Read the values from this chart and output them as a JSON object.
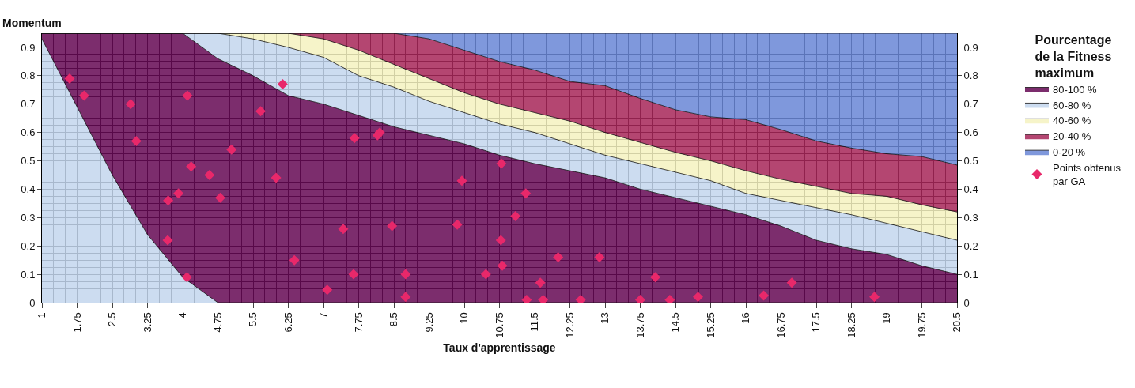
{
  "chart_data": {
    "type": "area",
    "ylabel": "Momentum",
    "xlabel": "Taux d'apprentissage",
    "legend_title": "Pourcentage de la Fitness maximum",
    "stacked": true,
    "grid": true,
    "legend": "right",
    "x": [
      1,
      1.75,
      2.5,
      3.25,
      4,
      4.75,
      5.5,
      6.25,
      7,
      7.75,
      8.5,
      9.25,
      10,
      10.75,
      11.5,
      12.25,
      13,
      13.75,
      14.5,
      15.25,
      16,
      16.75,
      17.5,
      18.25,
      19,
      19.75,
      20.5
    ],
    "xlim": [
      1,
      20.5
    ],
    "xticks": [
      1,
      1.75,
      2.5,
      3.25,
      4,
      4.75,
      5.5,
      6.25,
      7,
      7.75,
      8.5,
      9.25,
      10,
      10.75,
      11.5,
      12.25,
      13,
      13.75,
      14.5,
      15.25,
      16,
      16.75,
      17.5,
      18.25,
      19,
      19.75,
      20.5
    ],
    "ylim": [
      0,
      0.95
    ],
    "yticks": [
      0,
      0.1,
      0.2,
      0.3,
      0.4,
      0.5,
      0.6,
      0.7,
      0.8,
      0.9
    ],
    "y2lim": [
      0,
      0.95
    ],
    "y2ticks": [
      0,
      0.1,
      0.2,
      0.3,
      0.4,
      0.5,
      0.6,
      0.7,
      0.8,
      0.9
    ],
    "series": [
      {
        "color": "#c4d6ee",
        "values": [
          0.93,
          0.69,
          0.45,
          0.24,
          0.09,
          0,
          0,
          0,
          0,
          0,
          0,
          0,
          0,
          0,
          0,
          0,
          0,
          0,
          0,
          0,
          0,
          0,
          0,
          0,
          0,
          0,
          0
        ]
      },
      {
        "name": "80-100 %",
        "color": "#660a55",
        "values": [
          0.02,
          0.26,
          0.5,
          0.71,
          0.86,
          0.86,
          0.8,
          0.73,
          0.7,
          0.66,
          0.62,
          0.59,
          0.56,
          0.52,
          0.49,
          0.465,
          0.44,
          0.4,
          0.37,
          0.34,
          0.31,
          0.27,
          0.22,
          0.19,
          0.17,
          0.13,
          0.1
        ]
      },
      {
        "name": "60-80 %",
        "color": "#c4d6ee",
        "values": [
          0,
          0,
          0,
          0,
          0,
          0.09,
          0.13,
          0.17,
          0.165,
          0.14,
          0.14,
          0.12,
          0.11,
          0.11,
          0.11,
          0.095,
          0.08,
          0.09,
          0.09,
          0.09,
          0.075,
          0.09,
          0.115,
          0.12,
          0.11,
          0.12,
          0.12
        ]
      },
      {
        "name": "40-60 %",
        "color": "#f5f2c0",
        "values": [
          0,
          0,
          0,
          0,
          0,
          0,
          0.02,
          0.05,
          0.065,
          0.09,
          0.08,
          0.08,
          0.07,
          0.07,
          0.07,
          0.08,
          0.08,
          0.075,
          0.07,
          0.07,
          0.08,
          0.075,
          0.075,
          0.075,
          0.095,
          0.095,
          0.1
        ]
      },
      {
        "name": "20-40 %",
        "color": "#a8285a",
        "values": [
          0,
          0,
          0,
          0,
          0,
          0,
          0,
          0,
          0.02,
          0.06,
          0.11,
          0.14,
          0.15,
          0.15,
          0.15,
          0.14,
          0.165,
          0.155,
          0.15,
          0.155,
          0.18,
          0.175,
          0.16,
          0.16,
          0.15,
          0.17,
          0.165
        ]
      },
      {
        "name": "0-20 %",
        "color": "#6a87d6",
        "values": [
          0,
          0,
          0,
          0,
          0,
          0,
          0,
          0,
          0,
          0,
          0,
          0.02,
          0.06,
          0.1,
          0.13,
          0.17,
          0.185,
          0.23,
          0.27,
          0.295,
          0.305,
          0.34,
          0.38,
          0.405,
          0.425,
          0.435,
          0.465
        ]
      },
      {
        "name": "Points obtenus par GA",
        "type": "scatter",
        "marker": "diamond",
        "color": "#e8286a",
        "x": [
          1.59,
          1.9,
          2.89,
          3.01,
          4.1,
          4.18,
          5.04,
          4.57,
          4.8,
          3.91,
          3.69,
          3.68,
          4.09,
          5.66,
          6.13,
          5.99,
          6.38,
          7.08,
          7.66,
          8.15,
          8.2,
          7.42,
          7.64,
          8.46,
          8.75,
          8.75,
          9.95,
          9.85,
          10.79,
          10.46,
          10.78,
          10.81,
          11.31,
          11.09,
          11.62,
          11.33,
          11.68,
          12.0,
          12.48,
          12.88,
          13.75,
          14.07,
          14.38,
          14.98,
          16.38,
          16.98,
          18.74
        ],
        "values": [
          0.79,
          0.73,
          0.7,
          0.57,
          0.73,
          0.48,
          0.54,
          0.45,
          0.37,
          0.385,
          0.36,
          0.22,
          0.09,
          0.675,
          0.77,
          0.44,
          0.15,
          0.045,
          0.58,
          0.59,
          0.6,
          0.26,
          0.1,
          0.27,
          0.1,
          0.02,
          0.43,
          0.275,
          0.49,
          0.1,
          0.22,
          0.13,
          0.385,
          0.305,
          0.07,
          0.01,
          0.01,
          0.16,
          0.01,
          0.16,
          0.01,
          0.09,
          0.01,
          0.02,
          0.025,
          0.07,
          0.02
        ]
      }
    ]
  }
}
